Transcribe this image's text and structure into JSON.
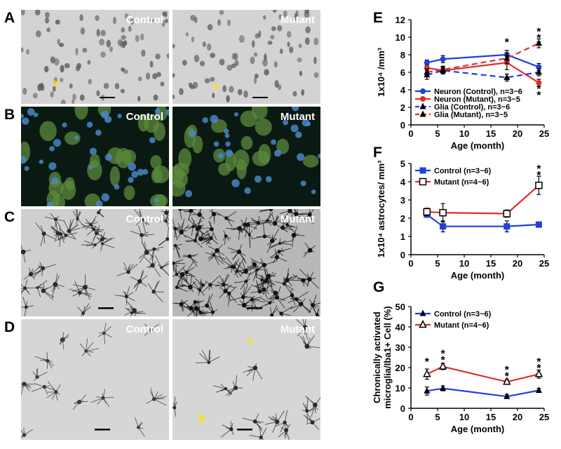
{
  "panels": {
    "A": {
      "label": "A",
      "left": "Control",
      "right": "Mutant"
    },
    "B": {
      "label": "B",
      "left": "Control",
      "right": "Mutant"
    },
    "C": {
      "label": "C",
      "left": "Control",
      "right": "Mutant"
    },
    "D": {
      "label": "D",
      "left": "Control",
      "right": "Mutant"
    }
  },
  "colors": {
    "blue": "#1f3fe0",
    "red": "#e0302a",
    "micro_bg": "#d4d4d4",
    "micro_fluor": "#0a1a12"
  },
  "chart_data": [
    {
      "panel": "E",
      "type": "line",
      "ylabel": "1x10⁴ /mm³",
      "xlabel": "Age (month)",
      "xlim": [
        0,
        25
      ],
      "ylim": [
        0,
        12
      ],
      "xticks": [
        "0",
        "5",
        "10",
        "15",
        "20",
        "25"
      ],
      "yticks": [
        "0",
        "2",
        "4",
        "6",
        "8",
        "10",
        "12"
      ],
      "series": [
        {
          "name": "Neuron (Control), n=3~6",
          "color": "#1f3fe0",
          "dashed": false,
          "marker": "circle",
          "x": [
            3,
            6,
            18,
            24
          ],
          "y": [
            7.1,
            7.5,
            8.0,
            6.6
          ],
          "err": [
            0.3,
            0.4,
            0.5,
            0.4
          ]
        },
        {
          "name": "Neuron (Mutant), n=3~5",
          "color": "#e0302a",
          "dashed": false,
          "marker": "circle",
          "x": [
            3,
            6,
            18,
            24
          ],
          "y": [
            6.5,
            6.2,
            7.1,
            4.8
          ],
          "err": [
            0.3,
            0.3,
            0.8,
            0.4
          ]
        },
        {
          "name": "Glia (Control), n=3~6",
          "color": "#1f3fe0",
          "dashed": true,
          "marker": "triangle",
          "x": [
            3,
            6,
            18,
            24
          ],
          "y": [
            5.7,
            6.2,
            5.4,
            6.0
          ],
          "err": [
            0.5,
            0.4,
            0.4,
            0.4
          ]
        },
        {
          "name": "Glia (Mutant), n=3~5",
          "color": "#e0302a",
          "dashed": true,
          "marker": "triangle",
          "x": [
            3,
            6,
            18,
            24
          ],
          "y": [
            6.0,
            6.3,
            7.6,
            9.3
          ],
          "err": [
            0.4,
            0.4,
            0.6,
            0.5
          ]
        }
      ],
      "annotations": [
        {
          "x": 18,
          "y": 9.0,
          "text": "*"
        },
        {
          "x": 24,
          "y": 10.2,
          "text": "***"
        },
        {
          "x": 24,
          "y": 3.7,
          "text": "**"
        }
      ]
    },
    {
      "panel": "F",
      "type": "line",
      "ylabel": "1x10⁴ astrocytes/ mm³",
      "xlabel": "Age (month)",
      "xlim": [
        0,
        25
      ],
      "ylim": [
        0,
        5
      ],
      "xticks": [
        "0",
        "5",
        "10",
        "15",
        "20",
        "25"
      ],
      "yticks": [
        "0",
        "1",
        "2",
        "3",
        "4",
        "5"
      ],
      "series": [
        {
          "name": "Control (n=3~6)",
          "color": "#1f3fe0",
          "marker": "square",
          "x": [
            3,
            6,
            18,
            24
          ],
          "y": [
            2.2,
            1.55,
            1.55,
            1.65
          ],
          "err": [
            0.15,
            0.3,
            0.3,
            0.1
          ]
        },
        {
          "name": "Mutant (n=4~6)",
          "color": "#e0302a",
          "marker": "square-open",
          "x": [
            3,
            6,
            18,
            24
          ],
          "y": [
            2.35,
            2.3,
            2.25,
            3.8
          ],
          "err": [
            0.2,
            0.5,
            0.2,
            0.5
          ]
        }
      ],
      "annotations": [
        {
          "x": 24,
          "y": 4.5,
          "text": "**"
        }
      ]
    },
    {
      "panel": "G",
      "type": "line",
      "ylabel": "Chronically activated microglia/Iba1+ Cell (%)",
      "xlabel": "Age (month)",
      "xlim": [
        0,
        25
      ],
      "ylim": [
        0,
        50
      ],
      "xticks": [
        "0",
        "5",
        "10",
        "15",
        "20",
        "25"
      ],
      "yticks": [
        "0",
        "10",
        "20",
        "30",
        "40",
        "50"
      ],
      "series": [
        {
          "name": "Control (n=3~6)",
          "color": "#1f3fe0",
          "marker": "triangle",
          "x": [
            3,
            6,
            18,
            24
          ],
          "y": [
            8.5,
            9.8,
            5.8,
            8.8
          ],
          "err": [
            2,
            1.2,
            1,
            1
          ]
        },
        {
          "name": "Mutant (n=4~6)",
          "color": "#e0302a",
          "marker": "triangle-open",
          "x": [
            3,
            6,
            18,
            24
          ],
          "y": [
            16.8,
            20.5,
            13.0,
            16.8
          ],
          "err": [
            2.5,
            1.5,
            1.2,
            2
          ]
        }
      ],
      "annotations": [
        {
          "x": 3,
          "y": 21,
          "text": "*"
        },
        {
          "x": 6,
          "y": 25,
          "text": "**"
        },
        {
          "x": 18,
          "y": 17,
          "text": "**"
        },
        {
          "x": 24,
          "y": 21,
          "text": "**"
        }
      ]
    }
  ]
}
